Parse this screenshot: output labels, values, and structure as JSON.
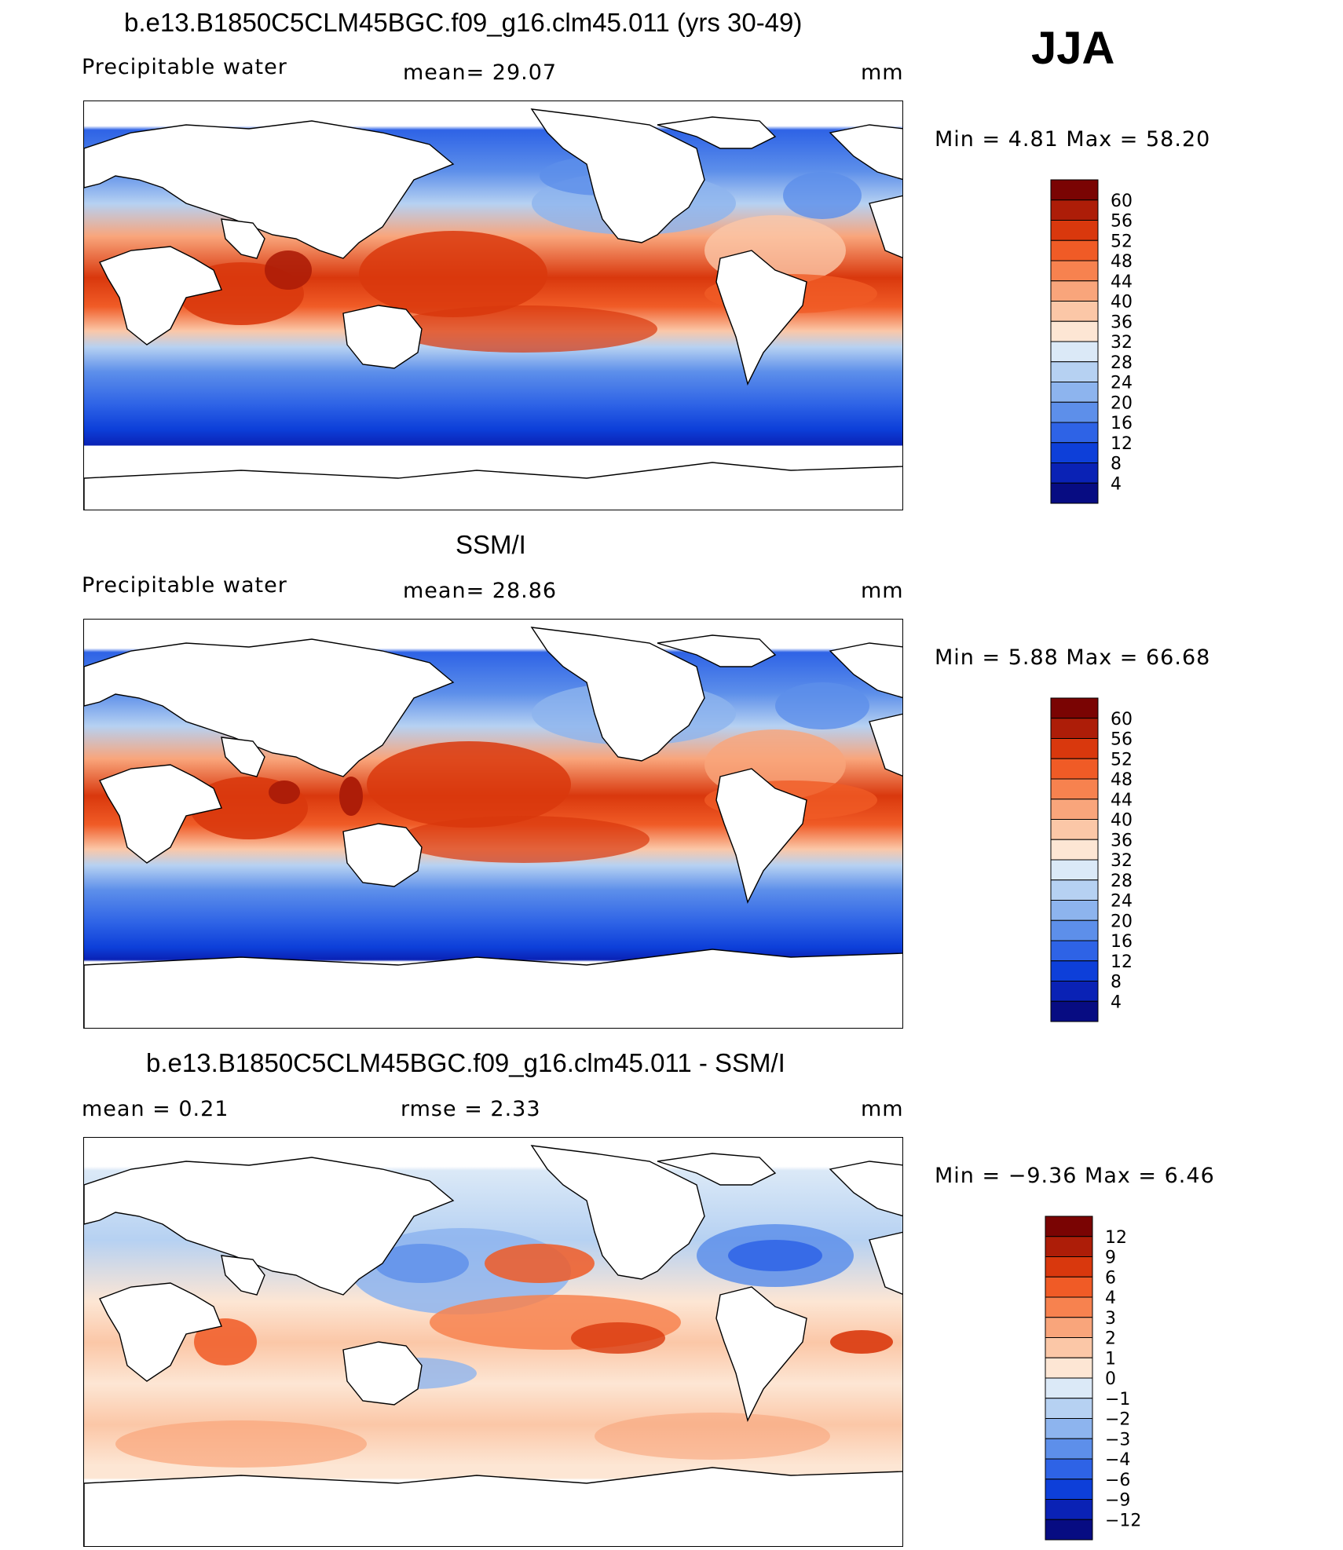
{
  "season": "JJA",
  "panels": [
    {
      "title": "b.e13.B1850C5CLM45BGC.f09_g16.clm45.011 (yrs 30-49)",
      "left": "Precipitable  water",
      "mid": "mean=   29.07",
      "units": "mm",
      "minmax": "Min  =     4.81  Max  =     58.20",
      "colorbar": [
        "60",
        "56",
        "52",
        "48",
        "44",
        "40",
        "36",
        "32",
        "28",
        "24",
        "20",
        "16",
        "12",
        "8",
        "4"
      ]
    },
    {
      "title": "SSM/I",
      "left": "Precipitable  water",
      "mid": "mean=   28.86",
      "units": "mm",
      "minmax": "Min  =     5.88  Max  =     66.68",
      "colorbar": [
        "60",
        "56",
        "52",
        "48",
        "44",
        "40",
        "36",
        "32",
        "28",
        "24",
        "20",
        "16",
        "12",
        "8",
        "4"
      ]
    },
    {
      "title": "b.e13.B1850C5CLM45BGC.f09_g16.clm45.011 - SSM/I",
      "left": "mean  =     0.21",
      "mid": "rmse  =     2.33",
      "units": "mm",
      "minmax": "Min  =   −9.36  Max  =       6.46",
      "colorbar": [
        "12",
        "9",
        "6",
        "4",
        "3",
        "2",
        "1",
        "0",
        "−1",
        "−2",
        "−3",
        "−4",
        "−6",
        "−9",
        "−12"
      ]
    }
  ],
  "colors": {
    "abs_ramp": [
      "#7a0403",
      "#ad1d08",
      "#d9380d",
      "#f05b26",
      "#f7824f",
      "#f9a57b",
      "#fbc7a7",
      "#fde6d4",
      "#dbe9f7",
      "#b6d1f2",
      "#8db4ee",
      "#5d8fea",
      "#2e63e6",
      "#0d3fd9",
      "#0a22b5",
      "#070c82"
    ],
    "diff_ramp": [
      "#7a0403",
      "#ad1d08",
      "#d9380d",
      "#f05b26",
      "#f7824f",
      "#f9a57b",
      "#fbc7a7",
      "#fde6d4",
      "#dbe9f7",
      "#b6d1f2",
      "#8db4ee",
      "#5d8fea",
      "#2e63e6",
      "#0d3fd9",
      "#0a22b5",
      "#070c82"
    ]
  },
  "chart_data": [
    {
      "type": "heatmap",
      "title": "b.e13.B1850C5CLM45BGC.f09_g16.clm45.011 (yrs 30-49)",
      "variable": "Precipitable water",
      "units": "mm",
      "season": "JJA",
      "mean": 29.07,
      "min": 4.81,
      "max": 58.2,
      "contour_levels": [
        4,
        8,
        12,
        16,
        20,
        24,
        28,
        32,
        36,
        40,
        44,
        48,
        52,
        56,
        60
      ]
    },
    {
      "type": "heatmap",
      "title": "SSM/I",
      "variable": "Precipitable water",
      "units": "mm",
      "mean": 28.86,
      "min": 5.88,
      "max": 66.68,
      "contour_levels": [
        4,
        8,
        12,
        16,
        20,
        24,
        28,
        32,
        36,
        40,
        44,
        48,
        52,
        56,
        60
      ]
    },
    {
      "type": "heatmap",
      "title": "b.e13.B1850C5CLM45BGC.f09_g16.clm45.011 - SSM/I",
      "units": "mm",
      "mean": 0.21,
      "rmse": 2.33,
      "min": -9.36,
      "max": 6.46,
      "contour_levels": [
        -12,
        -9,
        -6,
        -4,
        -3,
        -2,
        -1,
        0,
        1,
        2,
        3,
        4,
        6,
        9,
        12
      ]
    }
  ]
}
